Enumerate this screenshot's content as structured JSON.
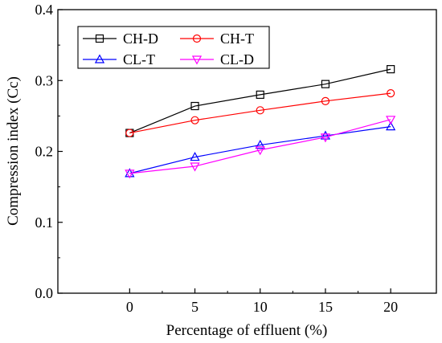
{
  "chart_data": {
    "type": "line",
    "title": "",
    "xlabel": "Percentage of effluent (%)",
    "ylabel": "Compression index (Cc)",
    "x": [
      0,
      5,
      10,
      15,
      20
    ],
    "xlim": [
      -5.5,
      23.5
    ],
    "ylim": [
      0.0,
      0.4
    ],
    "xticks": [
      0,
      5,
      10,
      15,
      20
    ],
    "yticks": [
      0.0,
      0.1,
      0.2,
      0.3,
      0.4
    ],
    "grid": false,
    "legend_position": "top-left",
    "series": [
      {
        "name": "CH-D",
        "color": "#000000",
        "marker": "square",
        "values": [
          0.226,
          0.264,
          0.28,
          0.295,
          0.316
        ]
      },
      {
        "name": "CH-T",
        "color": "#ff0000",
        "marker": "circle",
        "values": [
          0.226,
          0.244,
          0.258,
          0.271,
          0.282
        ]
      },
      {
        "name": "CL-T",
        "color": "#0000ff",
        "marker": "triangle-up",
        "values": [
          0.169,
          0.192,
          0.209,
          0.222,
          0.235
        ]
      },
      {
        "name": "CL-D",
        "color": "#ff00ff",
        "marker": "triangle-down",
        "values": [
          0.169,
          0.179,
          0.202,
          0.22,
          0.245
        ]
      }
    ]
  }
}
